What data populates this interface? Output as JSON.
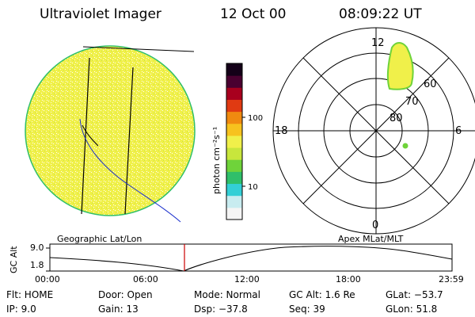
{
  "header": {
    "title": "Ultraviolet Imager",
    "date": "12 Oct 00",
    "time": "08:09:22 UT"
  },
  "colorbar": {
    "unit_label": "photon cm⁻²s⁻¹",
    "ticks": [
      "100",
      "10"
    ],
    "colors": [
      "#f5f5f5",
      "#c8ecf0",
      "#33cfd6",
      "#2fbf6a",
      "#6fd33a",
      "#c8e63c",
      "#f0f04a",
      "#f7c21e",
      "#f08a10",
      "#e03a12",
      "#a8001e",
      "#4a0030",
      "#140018"
    ]
  },
  "left_panel": {
    "label": "Geographic Lat/Lon",
    "fill_color": "#f0f04a"
  },
  "right_panel": {
    "label": "Apex MLat/MLT",
    "mlt_labels": [
      "12",
      "18",
      "6",
      "0"
    ],
    "mlat_labels": [
      "60",
      "70",
      "80"
    ]
  },
  "altitude_plot": {
    "ylabel": "GC Alt",
    "y_ticks": [
      "9.0",
      "1.8"
    ],
    "x_ticks": [
      "00:00",
      "06:00",
      "12:00",
      "18:00",
      "23:59"
    ],
    "cursor_color": "#cc0000"
  },
  "status": {
    "flt": "Flt: HOME",
    "ip": "IP:  9.0",
    "door": "Door: Open",
    "gain": "Gain: 13",
    "mode": "Mode: Normal",
    "dsp": "Dsp:  −37.8",
    "gc_alt": "GC Alt: 1.6 Re",
    "seq": "Seq: 39",
    "glat": "GLat: −53.7",
    "glon": "GLon:  51.8"
  }
}
